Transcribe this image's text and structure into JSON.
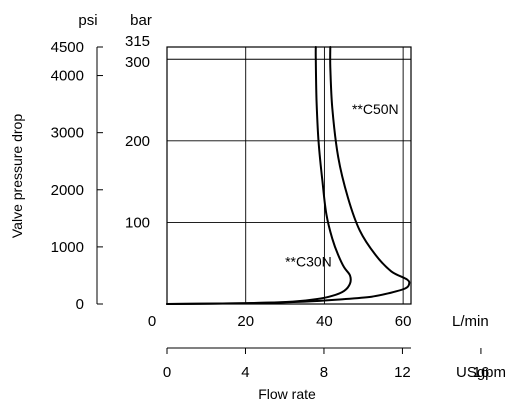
{
  "chart_data": {
    "type": "line",
    "title": "",
    "ylabel": "Valve pressure drop",
    "xlabel": "Flow rate",
    "psi_axis": {
      "unit": "psi",
      "ticks": [
        0,
        1000,
        2000,
        3000,
        4000,
        4500
      ],
      "tick_labels": [
        "0",
        "1000",
        "2000",
        "3000",
        "4000",
        "4500"
      ]
    },
    "bar_axis": {
      "unit": "bar",
      "ticks": [
        100,
        200,
        300,
        315
      ],
      "tick_labels": [
        "100",
        "200",
        "300",
        "315"
      ],
      "ylim": [
        0,
        315
      ]
    },
    "lmin_axis": {
      "unit": "L/min",
      "ticks": [
        0,
        20,
        40,
        60
      ],
      "tick_labels": [
        "0",
        "20",
        "40",
        "60"
      ],
      "xlim": [
        0,
        62
      ]
    },
    "usgpm_axis": {
      "unit": "USgpm",
      "ticks": [
        0,
        4,
        8,
        12,
        16
      ],
      "tick_labels": [
        "0",
        "4",
        "8",
        "12",
        "16"
      ]
    },
    "grid": true,
    "series": [
      {
        "name": "**C30N",
        "points": [
          [
            0,
            0
          ],
          [
            20,
            1
          ],
          [
            32,
            3
          ],
          [
            38,
            6
          ],
          [
            42,
            10
          ],
          [
            45,
            16
          ],
          [
            46.5,
            25
          ],
          [
            46.5,
            35
          ],
          [
            45,
            45
          ],
          [
            43.5,
            60
          ],
          [
            42,
            80
          ],
          [
            40.5,
            110
          ],
          [
            39.5,
            150
          ],
          [
            38.5,
            200
          ],
          [
            38,
            250
          ],
          [
            37.8,
            300
          ],
          [
            37.8,
            315
          ]
        ]
      },
      {
        "name": "**C50N",
        "points": [
          [
            0,
            0
          ],
          [
            20,
            1
          ],
          [
            35,
            3
          ],
          [
            45,
            6
          ],
          [
            52,
            9
          ],
          [
            57,
            14
          ],
          [
            60.5,
            19
          ],
          [
            61.5,
            24
          ],
          [
            61,
            30
          ],
          [
            57,
            40
          ],
          [
            53,
            60
          ],
          [
            49,
            90
          ],
          [
            46,
            130
          ],
          [
            43.5,
            180
          ],
          [
            42,
            240
          ],
          [
            41.5,
            290
          ],
          [
            41.5,
            315
          ]
        ]
      }
    ],
    "annotations": [
      {
        "text": "**C50N",
        "x": 47,
        "y": 233
      },
      {
        "text": "**C30N",
        "x": 30,
        "y": 46
      }
    ]
  }
}
